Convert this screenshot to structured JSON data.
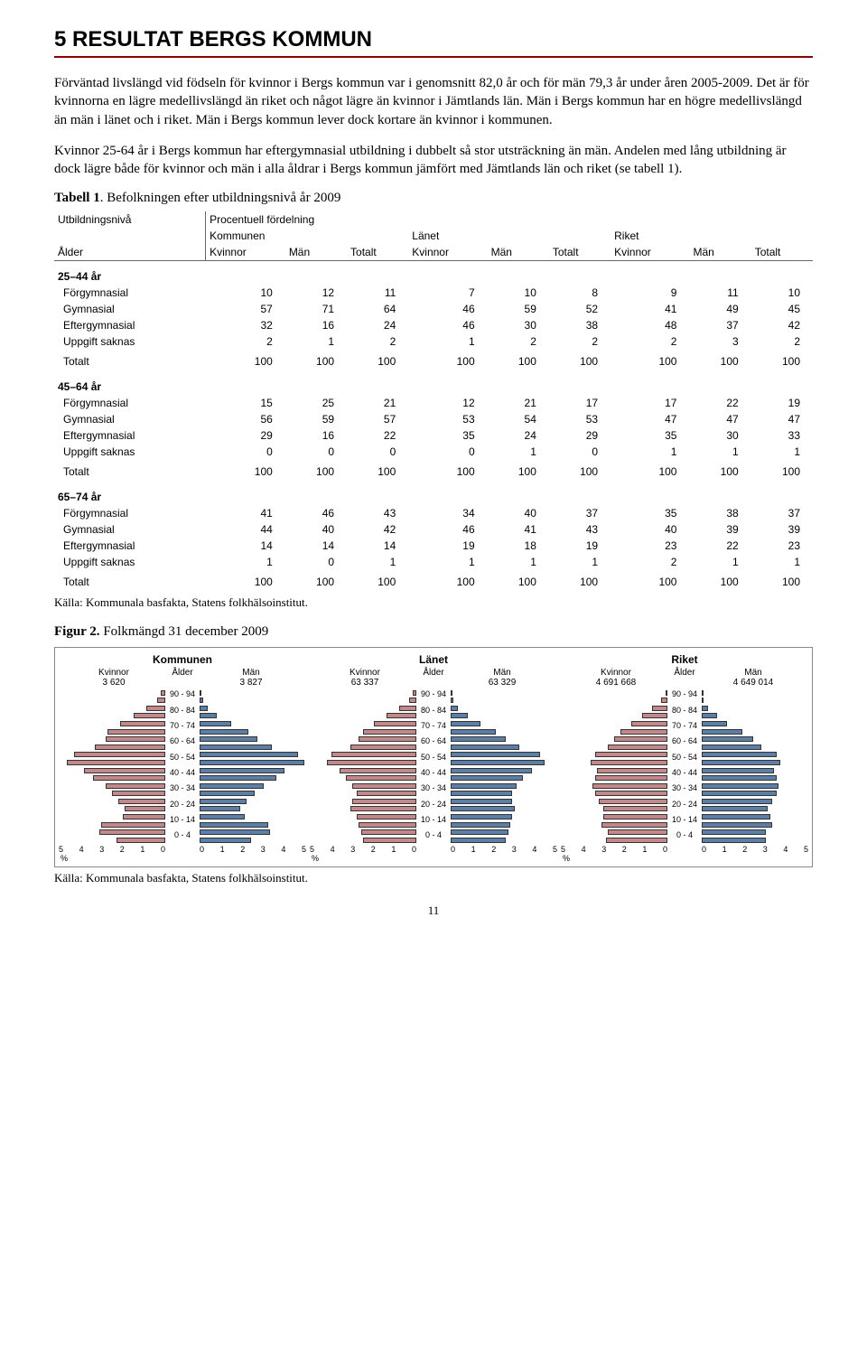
{
  "section": {
    "title": "5  RESULTAT BERGS KOMMUN"
  },
  "paragraphs": {
    "p1": "Förväntad livslängd vid födseln för kvinnor i Bergs kommun var i genomsnitt 82,0 år och för män 79,3 år under åren 2005-2009. Det är för kvinnorna en lägre medellivslängd än riket och något lägre än kvinnor i Jämtlands län. Män i Bergs kommun har en högre medellivslängd än män i länet och i riket. Män i Bergs kommun lever dock kortare än kvinnor i kommunen.",
    "p2": "Kvinnor 25-64 år i Bergs kommun har eftergymnasial utbildning i dubbelt så stor utsträckning än män. Andelen med lång utbildning är dock lägre både för kvinnor och män i alla åldrar i Bergs kommun jämfört med Jämtlands län och riket (se tabell 1)."
  },
  "table1": {
    "caption_bold": "Tabell 1",
    "caption_rest": ". Befolkningen efter utbildningsnivå år 2009",
    "h_utbildning": "Utbildningsnivå",
    "h_procentuell": "Procentuell fördelning",
    "h_kommunen": "Kommunen",
    "h_lanet": "Länet",
    "h_riket": "Riket",
    "h_alder": "Ålder",
    "h_kvinnor": "Kvinnor",
    "h_man": "Män",
    "h_totalt": "Totalt",
    "ages": [
      "25–44 år",
      "45–64 år",
      "65–74 år"
    ],
    "row_labels": [
      "Förgymnasial",
      "Gymnasial",
      "Eftergymnasial",
      "Uppgift saknas",
      "Totalt"
    ],
    "blocks": [
      {
        "rows": [
          [
            10,
            12,
            11,
            7,
            10,
            8,
            9,
            11,
            10
          ],
          [
            57,
            71,
            64,
            46,
            59,
            52,
            41,
            49,
            45
          ],
          [
            32,
            16,
            24,
            46,
            30,
            38,
            48,
            37,
            42
          ],
          [
            2,
            1,
            2,
            1,
            2,
            2,
            2,
            3,
            2
          ],
          [
            100,
            100,
            100,
            100,
            100,
            100,
            100,
            100,
            100
          ]
        ]
      },
      {
        "rows": [
          [
            15,
            25,
            21,
            12,
            21,
            17,
            17,
            22,
            19
          ],
          [
            56,
            59,
            57,
            53,
            54,
            53,
            47,
            47,
            47
          ],
          [
            29,
            16,
            22,
            35,
            24,
            29,
            35,
            30,
            33
          ],
          [
            0,
            0,
            0,
            0,
            1,
            0,
            1,
            1,
            1
          ],
          [
            100,
            100,
            100,
            100,
            100,
            100,
            100,
            100,
            100
          ]
        ]
      },
      {
        "rows": [
          [
            41,
            46,
            43,
            34,
            40,
            37,
            35,
            38,
            37
          ],
          [
            44,
            40,
            42,
            46,
            41,
            43,
            40,
            39,
            39
          ],
          [
            14,
            14,
            14,
            19,
            18,
            19,
            23,
            22,
            23
          ],
          [
            1,
            0,
            1,
            1,
            1,
            1,
            2,
            1,
            1
          ],
          [
            100,
            100,
            100,
            100,
            100,
            100,
            100,
            100,
            100
          ]
        ]
      }
    ],
    "source": "Källa: Kommunala basfakta, Statens folkhälsoinstitut."
  },
  "figure2": {
    "caption_bold": "Figur 2.",
    "caption_rest": " Folkmängd 31 december 2009",
    "age_labels": [
      "90 - 94",
      "80 - 84",
      "70 - 74",
      "60 - 64",
      "50 - 54",
      "40 - 44",
      "30 - 34",
      "20 - 24",
      "10 - 14",
      "0 - 4"
    ],
    "axis_ticks_left": [
      "5",
      "4",
      "3",
      "2",
      "1",
      "0"
    ],
    "axis_ticks_right": [
      "0",
      "1",
      "2",
      "3",
      "4",
      "5"
    ],
    "pct_label": "%",
    "h_kvinnor": "Kvinnor",
    "h_alder": "Ålder",
    "h_man": "Män",
    "colors": {
      "kvinnor": "#c4878a",
      "man": "#5b7fa6",
      "border": "#333333"
    },
    "bar_max_pct": 5,
    "panels": [
      {
        "title": "Kommunen",
        "kvinnor_count": "3 620",
        "man_count": "3 827",
        "kvinnor": [
          0.2,
          0.4,
          0.9,
          1.5,
          2.1,
          2.7,
          2.8,
          3.3,
          4.3,
          4.6,
          3.8,
          3.4,
          2.8,
          2.5,
          2.2,
          1.9,
          2.0,
          3.0,
          3.1,
          2.3
        ],
        "man": [
          0.05,
          0.15,
          0.4,
          0.8,
          1.5,
          2.3,
          2.7,
          3.4,
          4.6,
          4.9,
          4.0,
          3.6,
          3.0,
          2.6,
          2.2,
          1.9,
          2.1,
          3.2,
          3.3,
          2.4
        ]
      },
      {
        "title": "Länet",
        "kvinnor_count": "63 337",
        "man_count": "63 329",
        "kvinnor": [
          0.15,
          0.35,
          0.8,
          1.4,
          2.0,
          2.5,
          2.7,
          3.1,
          4.0,
          4.2,
          3.6,
          3.3,
          3.0,
          2.8,
          3.0,
          3.1,
          2.8,
          2.7,
          2.6,
          2.5
        ],
        "man": [
          0.05,
          0.12,
          0.35,
          0.8,
          1.4,
          2.1,
          2.6,
          3.2,
          4.2,
          4.4,
          3.8,
          3.4,
          3.1,
          2.9,
          2.9,
          3.0,
          2.9,
          2.8,
          2.7,
          2.6
        ]
      },
      {
        "title": "Riket",
        "kvinnor_count": "4 691 668",
        "man_count": "4 649 014",
        "kvinnor": [
          0.1,
          0.3,
          0.7,
          1.2,
          1.7,
          2.2,
          2.5,
          2.8,
          3.4,
          3.6,
          3.3,
          3.4,
          3.5,
          3.4,
          3.2,
          3.0,
          3.0,
          3.1,
          2.8,
          2.9
        ],
        "man": [
          0.03,
          0.1,
          0.3,
          0.7,
          1.2,
          1.9,
          2.4,
          2.8,
          3.5,
          3.7,
          3.4,
          3.5,
          3.6,
          3.5,
          3.3,
          3.1,
          3.2,
          3.3,
          3.0,
          3.0
        ]
      }
    ],
    "source": "Källa: Kommunala basfakta, Statens folkhälsoinstitut."
  },
  "page_number": "11"
}
